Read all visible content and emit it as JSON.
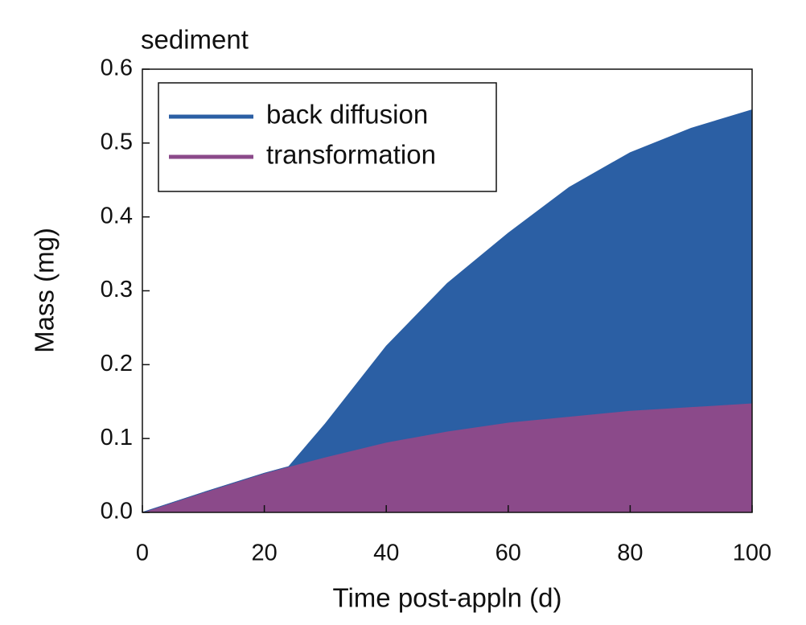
{
  "chart_data": {
    "type": "area",
    "stacked": true,
    "title": "sediment",
    "x_label": "Time post-appln (d)",
    "y_label": "Mass (mg)",
    "x": [
      0,
      10,
      20,
      24,
      30,
      40,
      50,
      60,
      70,
      80,
      90,
      100
    ],
    "series": [
      {
        "name": "back diffusion",
        "color": "#2b5fa4",
        "values": [
          0,
          0,
          0,
          0,
          0.045,
          0.13,
          0.2,
          0.256,
          0.31,
          0.349,
          0.377,
          0.397
        ]
      },
      {
        "name": "transformation",
        "color": "#8b4a8a",
        "values": [
          0,
          0.027,
          0.053,
          0.062,
          0.075,
          0.095,
          0.11,
          0.122,
          0.13,
          0.138,
          0.143,
          0.148
        ]
      }
    ],
    "xlim": [
      0,
      100
    ],
    "xticks": [
      0,
      20,
      40,
      60,
      80,
      100
    ],
    "ylim": [
      0,
      0.6
    ],
    "yticks": [
      {
        "value": 0,
        "label": "0.0"
      },
      0.1,
      0.2,
      0.3,
      0.4,
      0.5,
      0.6
    ],
    "legend": "upper-left",
    "grid": false
  }
}
